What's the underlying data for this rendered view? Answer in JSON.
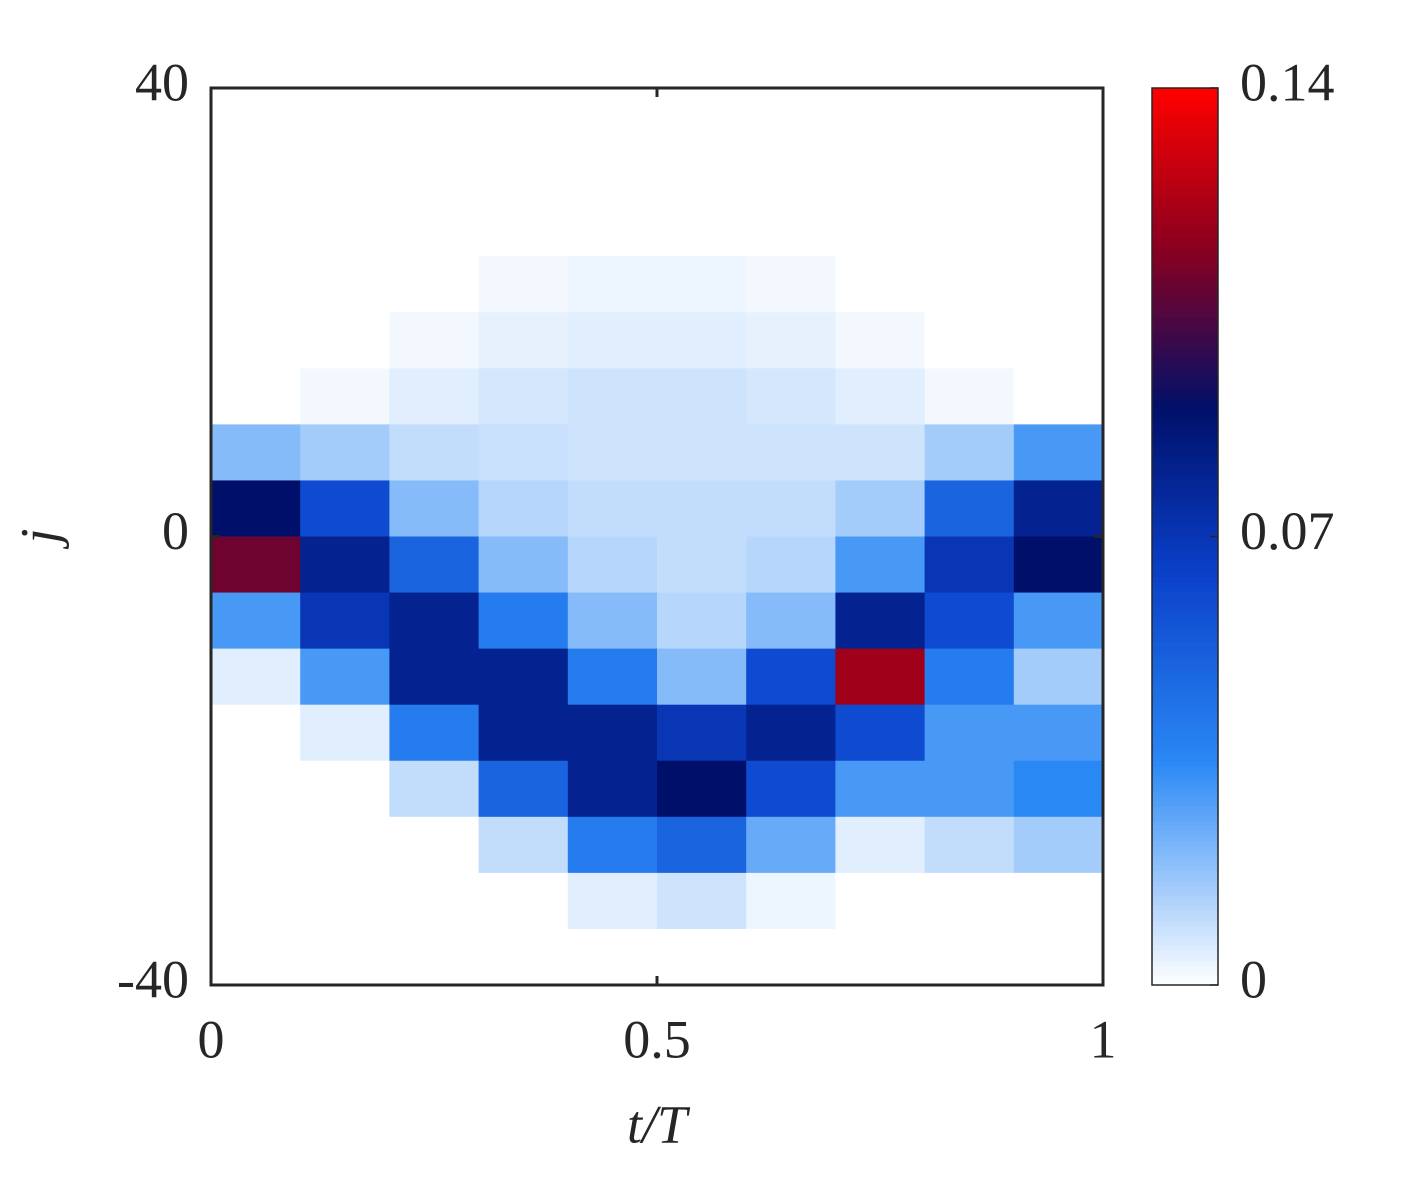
{
  "chart_data": {
    "type": "heatmap",
    "xlabel": "t/T",
    "ylabel": "j",
    "x": [
      0.05,
      0.15,
      0.25,
      0.35,
      0.45,
      0.55,
      0.65,
      0.75,
      0.85,
      0.95
    ],
    "y": [
      37.5,
      32.5,
      27.5,
      22.5,
      17.5,
      12.5,
      7.5,
      2.5,
      -2.5,
      -7.5,
      -12.5,
      -17.5,
      -22.5,
      -27.5,
      -32.5,
      -37.5
    ],
    "z": [
      [
        0,
        0,
        0,
        0,
        0,
        0,
        0,
        0,
        0,
        0
      ],
      [
        0,
        0,
        0,
        0,
        0,
        0,
        0,
        0,
        0,
        0
      ],
      [
        0,
        0,
        0,
        0,
        0,
        0,
        0,
        0,
        0,
        0
      ],
      [
        0,
        0,
        0,
        0.002,
        0.003,
        0.003,
        0.002,
        0,
        0,
        0
      ],
      [
        0,
        0,
        0.002,
        0.004,
        0.005,
        0.005,
        0.004,
        0.002,
        0,
        0
      ],
      [
        0,
        0.002,
        0.005,
        0.007,
        0.008,
        0.008,
        0.007,
        0.005,
        0.002,
        0
      ],
      [
        0.02,
        0.015,
        0.01,
        0.009,
        0.008,
        0.008,
        0.008,
        0.008,
        0.015,
        0.03
      ],
      [
        0.09,
        0.06,
        0.02,
        0.012,
        0.01,
        0.01,
        0.01,
        0.015,
        0.05,
        0.08
      ],
      [
        0.11,
        0.08,
        0.05,
        0.02,
        0.012,
        0.01,
        0.012,
        0.03,
        0.07,
        0.09
      ],
      [
        0.03,
        0.07,
        0.08,
        0.04,
        0.02,
        0.012,
        0.02,
        0.08,
        0.06,
        0.03
      ],
      [
        0.005,
        0.03,
        0.08,
        0.08,
        0.04,
        0.02,
        0.06,
        0.12,
        0.04,
        0.015
      ],
      [
        0,
        0.005,
        0.04,
        0.08,
        0.08,
        0.07,
        0.08,
        0.06,
        0.03,
        0.03
      ],
      [
        0,
        0,
        0.01,
        0.05,
        0.08,
        0.09,
        0.06,
        0.03,
        0.03,
        0.035
      ],
      [
        0,
        0,
        0,
        0.01,
        0.04,
        0.05,
        0.025,
        0.005,
        0.01,
        0.015
      ],
      [
        0,
        0,
        0,
        0,
        0.005,
        0.008,
        0.003,
        0,
        0,
        0
      ],
      [
        0,
        0,
        0,
        0,
        0,
        0,
        0,
        0,
        0,
        0
      ]
    ],
    "xlim": [
      0,
      1
    ],
    "xticks": [
      0,
      0.5,
      1
    ],
    "ylim": [
      -40,
      40
    ],
    "yticks": [
      -40,
      0,
      40
    ],
    "zlim": [
      0,
      0.14
    ],
    "zticks": [
      0,
      0.07,
      0.14
    ],
    "colormap": [
      {
        "value": 0,
        "color": "#ffffff"
      },
      {
        "value": 0.035,
        "color": "#2a88f5"
      },
      {
        "value": 0.065,
        "color": "#0a3fc8"
      },
      {
        "value": 0.09,
        "color": "#00106a"
      },
      {
        "value": 0.115,
        "color": "#8a0020"
      },
      {
        "value": 0.14,
        "color": "#ff0000"
      }
    ]
  }
}
